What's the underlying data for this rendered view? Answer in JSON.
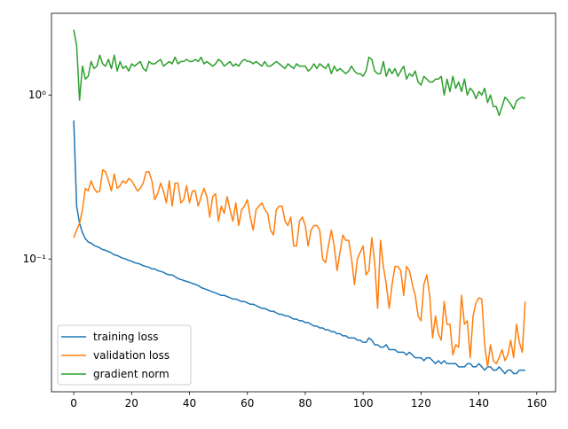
{
  "chart_data": {
    "type": "line",
    "log_y": true,
    "legend": "lower left",
    "x": [
      0,
      1,
      2,
      3,
      4,
      5,
      6,
      7,
      8,
      9,
      10,
      11,
      12,
      13,
      14,
      15,
      16,
      17,
      18,
      19,
      20,
      21,
      22,
      23,
      24,
      25,
      26,
      27,
      28,
      29,
      30,
      31,
      32,
      33,
      34,
      35,
      36,
      37,
      38,
      39,
      40,
      41,
      42,
      43,
      44,
      45,
      46,
      47,
      48,
      49,
      50,
      51,
      52,
      53,
      54,
      55,
      56,
      57,
      58,
      59,
      60,
      61,
      62,
      63,
      64,
      65,
      66,
      67,
      68,
      69,
      70,
      71,
      72,
      73,
      74,
      75,
      76,
      77,
      78,
      79,
      80,
      81,
      82,
      83,
      84,
      85,
      86,
      87,
      88,
      89,
      90,
      91,
      92,
      93,
      94,
      95,
      96,
      97,
      98,
      99,
      100,
      101,
      102,
      103,
      104,
      105,
      106,
      107,
      108,
      109,
      110,
      111,
      112,
      113,
      114,
      115,
      116,
      117,
      118,
      119,
      120,
      121,
      122,
      123,
      124,
      125,
      126,
      127,
      128,
      129,
      130,
      131,
      132,
      133,
      134,
      135,
      136,
      137,
      138,
      139,
      140,
      141,
      142,
      143,
      144,
      145,
      146,
      147,
      148,
      149,
      150,
      151,
      152,
      153,
      154,
      155,
      156
    ],
    "xlim": [
      -7.7,
      166.5
    ],
    "xticks": [
      0,
      20,
      40,
      60,
      80,
      100,
      120,
      140,
      160
    ],
    "ylim": [
      0.0155,
      3.15
    ],
    "yticks": [
      {
        "value": 0.1,
        "label": "10⁻¹"
      },
      {
        "value": 1,
        "label": "10⁰"
      }
    ],
    "series": [
      {
        "name": "training loss",
        "color": "#1f77b4",
        "values": [
          0.7,
          0.21,
          0.165,
          0.145,
          0.133,
          0.127,
          0.125,
          0.121,
          0.119,
          0.117,
          0.114,
          0.113,
          0.111,
          0.109,
          0.106,
          0.105,
          0.103,
          0.101,
          0.1,
          0.098,
          0.097,
          0.095,
          0.094,
          0.093,
          0.091,
          0.09,
          0.089,
          0.087,
          0.087,
          0.085,
          0.084,
          0.083,
          0.081,
          0.08,
          0.08,
          0.078,
          0.076,
          0.075,
          0.074,
          0.073,
          0.072,
          0.071,
          0.07,
          0.069,
          0.067,
          0.066,
          0.065,
          0.064,
          0.063,
          0.062,
          0.061,
          0.06,
          0.06,
          0.059,
          0.058,
          0.057,
          0.057,
          0.056,
          0.055,
          0.055,
          0.054,
          0.053,
          0.053,
          0.052,
          0.051,
          0.05,
          0.05,
          0.049,
          0.048,
          0.048,
          0.047,
          0.046,
          0.046,
          0.045,
          0.045,
          0.044,
          0.043,
          0.043,
          0.042,
          0.042,
          0.041,
          0.041,
          0.04,
          0.039,
          0.039,
          0.038,
          0.038,
          0.037,
          0.037,
          0.036,
          0.036,
          0.035,
          0.035,
          0.034,
          0.034,
          0.033,
          0.033,
          0.033,
          0.032,
          0.032,
          0.031,
          0.031,
          0.033,
          0.032,
          0.03,
          0.03,
          0.029,
          0.029,
          0.03,
          0.028,
          0.028,
          0.028,
          0.027,
          0.027,
          0.027,
          0.026,
          0.027,
          0.026,
          0.025,
          0.025,
          0.025,
          0.024,
          0.025,
          0.025,
          0.024,
          0.023,
          0.024,
          0.023,
          0.024,
          0.023,
          0.023,
          0.023,
          0.023,
          0.022,
          0.022,
          0.022,
          0.023,
          0.023,
          0.022,
          0.022,
          0.023,
          0.022,
          0.021,
          0.022,
          0.022,
          0.021,
          0.021,
          0.022,
          0.021,
          0.02,
          0.021,
          0.021,
          0.02,
          0.02,
          0.021,
          0.021,
          0.021
        ]
      },
      {
        "name": "validation loss",
        "color": "#ff7f0e",
        "values": [
          0.135,
          0.15,
          0.165,
          0.2,
          0.27,
          0.26,
          0.3,
          0.27,
          0.255,
          0.26,
          0.35,
          0.34,
          0.3,
          0.26,
          0.33,
          0.27,
          0.28,
          0.3,
          0.29,
          0.31,
          0.3,
          0.28,
          0.26,
          0.27,
          0.29,
          0.34,
          0.34,
          0.3,
          0.23,
          0.25,
          0.29,
          0.26,
          0.22,
          0.3,
          0.21,
          0.29,
          0.29,
          0.22,
          0.23,
          0.28,
          0.22,
          0.26,
          0.26,
          0.21,
          0.24,
          0.27,
          0.24,
          0.18,
          0.24,
          0.25,
          0.17,
          0.21,
          0.19,
          0.24,
          0.2,
          0.17,
          0.22,
          0.16,
          0.2,
          0.21,
          0.23,
          0.18,
          0.15,
          0.2,
          0.21,
          0.22,
          0.2,
          0.19,
          0.15,
          0.14,
          0.2,
          0.21,
          0.21,
          0.17,
          0.16,
          0.18,
          0.12,
          0.12,
          0.17,
          0.18,
          0.16,
          0.12,
          0.15,
          0.16,
          0.16,
          0.15,
          0.1,
          0.095,
          0.12,
          0.15,
          0.12,
          0.085,
          0.11,
          0.14,
          0.13,
          0.13,
          0.1,
          0.07,
          0.1,
          0.11,
          0.12,
          0.08,
          0.085,
          0.135,
          0.095,
          0.05,
          0.13,
          0.09,
          0.07,
          0.05,
          0.07,
          0.09,
          0.09,
          0.085,
          0.06,
          0.09,
          0.085,
          0.07,
          0.06,
          0.045,
          0.042,
          0.07,
          0.08,
          0.06,
          0.033,
          0.045,
          0.035,
          0.032,
          0.055,
          0.04,
          0.04,
          0.026,
          0.03,
          0.029,
          0.06,
          0.04,
          0.042,
          0.025,
          0.045,
          0.054,
          0.058,
          0.057,
          0.03,
          0.022,
          0.03,
          0.024,
          0.023,
          0.025,
          0.028,
          0.024,
          0.026,
          0.032,
          0.025,
          0.04,
          0.031,
          0.027,
          0.055
        ]
      },
      {
        "name": "gradient norm",
        "color": "#2ca02c",
        "values": [
          2.5,
          2.0,
          0.93,
          1.5,
          1.25,
          1.3,
          1.6,
          1.45,
          1.5,
          1.75,
          1.55,
          1.5,
          1.65,
          1.45,
          1.75,
          1.4,
          1.6,
          1.45,
          1.5,
          1.4,
          1.55,
          1.5,
          1.55,
          1.6,
          1.45,
          1.4,
          1.6,
          1.55,
          1.55,
          1.6,
          1.65,
          1.5,
          1.55,
          1.6,
          1.55,
          1.7,
          1.55,
          1.6,
          1.6,
          1.65,
          1.6,
          1.6,
          1.65,
          1.6,
          1.7,
          1.55,
          1.6,
          1.55,
          1.5,
          1.55,
          1.65,
          1.6,
          1.5,
          1.55,
          1.6,
          1.5,
          1.55,
          1.5,
          1.6,
          1.65,
          1.6,
          1.6,
          1.55,
          1.6,
          1.55,
          1.5,
          1.6,
          1.5,
          1.5,
          1.55,
          1.6,
          1.55,
          1.5,
          1.45,
          1.55,
          1.5,
          1.45,
          1.55,
          1.5,
          1.5,
          1.5,
          1.4,
          1.45,
          1.55,
          1.45,
          1.55,
          1.5,
          1.45,
          1.55,
          1.35,
          1.5,
          1.4,
          1.45,
          1.4,
          1.35,
          1.4,
          1.5,
          1.4,
          1.35,
          1.35,
          1.3,
          1.4,
          1.7,
          1.65,
          1.4,
          1.35,
          1.35,
          1.6,
          1.3,
          1.45,
          1.35,
          1.45,
          1.3,
          1.4,
          1.5,
          1.25,
          1.35,
          1.3,
          1.4,
          1.2,
          1.15,
          1.3,
          1.25,
          1.2,
          1.2,
          1.25,
          1.25,
          1.3,
          1.0,
          1.25,
          1.05,
          1.3,
          1.1,
          1.2,
          1.05,
          1.25,
          1.0,
          1.1,
          1.05,
          0.95,
          1.05,
          1.0,
          1.1,
          0.9,
          1.0,
          0.85,
          0.85,
          0.75,
          0.85,
          0.97,
          0.93,
          0.88,
          0.82,
          0.92,
          0.95,
          0.97,
          0.95
        ]
      }
    ]
  }
}
